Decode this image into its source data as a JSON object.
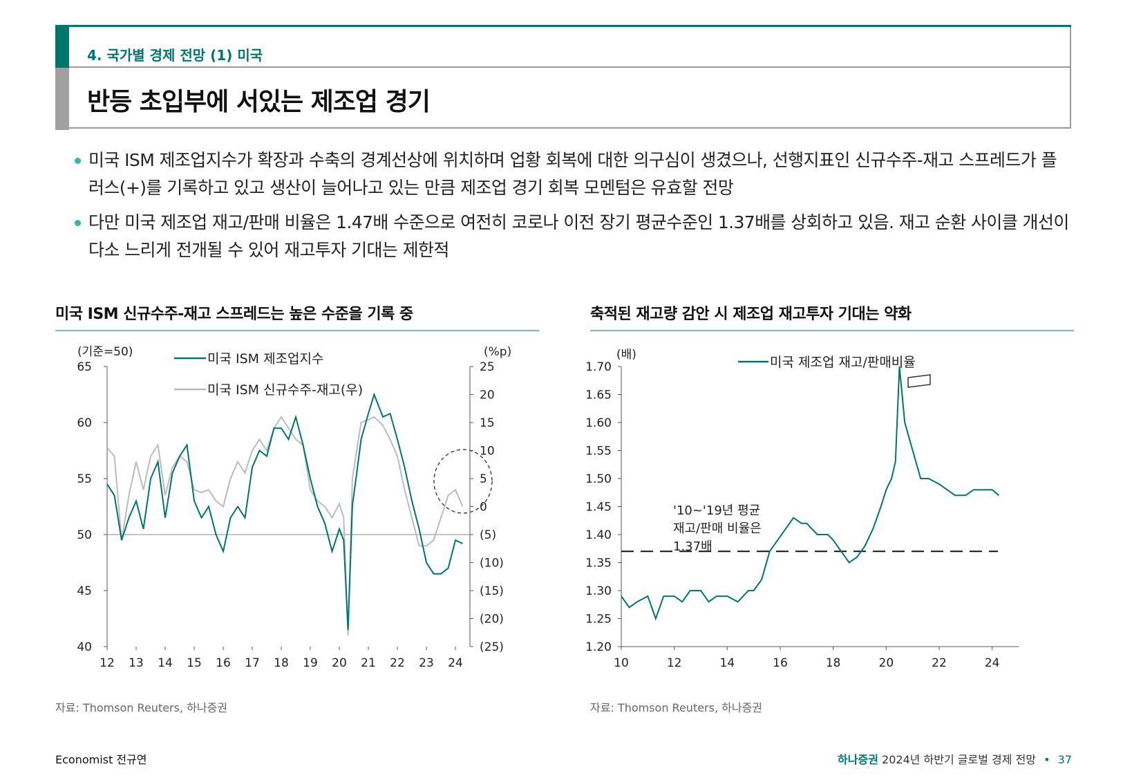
{
  "header": {
    "section_label": "4. 국가별 경제 전망 (1) 미국",
    "title": "반등 초입부에 서있는 제조업 경기"
  },
  "bullets": [
    "미국 ISM 제조업지수가 확장과 수축의 경계선상에 위치하며 업황 회복에 대한 의구심이 생겼으나, 선행지표인 신규수주-재고 스프레드가 플러스(+)를 기록하고 있고 생산이 늘어나고 있는 만큼 제조업 경기 회복 모멘텀은 유효할 전망",
    "다만 미국 제조업 재고/판매 비율은 1.47배 수준으로 여전히 코로나 이전 장기 평균수준인 1.37배를 상회하고 있음. 재고 순환 사이클 개선이 다소 느리게 전개될 수 있어 재고투자 기대는 제한적"
  ],
  "colors": {
    "teal": "#00756c",
    "grey": "#bbbbbb",
    "accent": "#3ab5a5"
  },
  "chart_data": [
    {
      "type": "line",
      "title": "미국 ISM 신규수주-재고 스프레드는 높은 수준을 기록 중",
      "left_unit": "(기준=50)",
      "right_unit": "(%p)",
      "x_ticks": [
        "12",
        "13",
        "14",
        "15",
        "16",
        "17",
        "18",
        "19",
        "20",
        "21",
        "22",
        "23",
        "24"
      ],
      "y_left": {
        "min": 40,
        "max": 65,
        "ticks": [
          "65",
          "60",
          "55",
          "50",
          "45",
          "40"
        ]
      },
      "y_right": {
        "min": -25,
        "max": 25,
        "ticks": [
          "25",
          "20",
          "15",
          "10",
          "5",
          "0",
          "(5)",
          "(10)",
          "(15)",
          "(20)",
          "(25)"
        ]
      },
      "series": [
        {
          "name": "미국 ISM 제조업지수",
          "axis": "left",
          "color": "#00756c",
          "x": [
            2012.0,
            2012.25,
            2012.5,
            2012.75,
            2013.0,
            2013.25,
            2013.5,
            2013.75,
            2014.0,
            2014.25,
            2014.5,
            2014.75,
            2015.0,
            2015.25,
            2015.5,
            2015.75,
            2016.0,
            2016.25,
            2016.5,
            2016.75,
            2017.0,
            2017.25,
            2017.5,
            2017.75,
            2018.0,
            2018.25,
            2018.5,
            2018.75,
            2019.0,
            2019.25,
            2019.5,
            2019.75,
            2020.0,
            2020.15,
            2020.3,
            2020.45,
            2020.6,
            2020.75,
            2021.0,
            2021.2,
            2021.5,
            2021.75,
            2022.0,
            2022.25,
            2022.5,
            2022.75,
            2023.0,
            2023.25,
            2023.5,
            2023.75,
            2024.0,
            2024.25
          ],
          "values": [
            54.5,
            53.5,
            49.5,
            51.5,
            53.0,
            50.5,
            55.0,
            56.5,
            51.5,
            55.5,
            57.0,
            58.0,
            53.0,
            51.5,
            52.5,
            50.0,
            48.5,
            51.5,
            52.5,
            51.5,
            56.0,
            57.5,
            57.0,
            59.5,
            59.5,
            58.5,
            60.5,
            58.0,
            55.0,
            52.5,
            51.0,
            48.5,
            50.5,
            49.5,
            41.5,
            52.6,
            55.5,
            58.5,
            60.8,
            62.5,
            60.5,
            60.8,
            58.5,
            56.0,
            53.0,
            50.5,
            47.5,
            46.5,
            46.5,
            47.0,
            49.5,
            49.2
          ]
        },
        {
          "name": "미국 ISM 신규수주-재고(우)",
          "axis": "right",
          "color": "#bbbbbb",
          "x": [
            2012.0,
            2012.25,
            2012.5,
            2012.75,
            2013.0,
            2013.25,
            2013.5,
            2013.75,
            2014.0,
            2014.25,
            2014.5,
            2014.75,
            2015.0,
            2015.25,
            2015.5,
            2015.75,
            2016.0,
            2016.25,
            2016.5,
            2016.75,
            2017.0,
            2017.25,
            2017.5,
            2017.75,
            2018.0,
            2018.25,
            2018.5,
            2018.75,
            2019.0,
            2019.25,
            2019.5,
            2019.75,
            2020.0,
            2020.15,
            2020.3,
            2020.45,
            2020.6,
            2020.75,
            2021.0,
            2021.2,
            2021.5,
            2021.75,
            2022.0,
            2022.25,
            2022.5,
            2022.75,
            2023.0,
            2023.25,
            2023.5,
            2023.75,
            2024.0,
            2024.25
          ],
          "values": [
            10.5,
            9.0,
            -6.0,
            2.0,
            8.0,
            3.0,
            9.0,
            11.0,
            2.0,
            7.0,
            9.0,
            8.0,
            3.0,
            2.5,
            3.0,
            1.0,
            0.0,
            5.0,
            8.0,
            6.0,
            10.0,
            12.0,
            10.0,
            14.0,
            16.0,
            14.0,
            12.0,
            11.0,
            3.0,
            1.0,
            0.0,
            -2.0,
            0.5,
            -2.0,
            -23.0,
            5.0,
            10.0,
            15.0,
            15.5,
            16.0,
            14.5,
            12.0,
            9.0,
            3.0,
            -2.0,
            -7.0,
            -7.0,
            -6.0,
            -2.0,
            2.0,
            3.0,
            0.0
          ]
        }
      ]
    },
    {
      "type": "line",
      "title": "축적된 재고량 감안 시 제조업 재고투자 기대는 약화",
      "left_unit": "(배)",
      "x_ticks": [
        "10",
        "12",
        "14",
        "16",
        "18",
        "20",
        "22",
        "24"
      ],
      "y_left": {
        "min": 1.2,
        "max": 1.7,
        "ticks": [
          "1.70",
          "1.65",
          "1.60",
          "1.55",
          "1.50",
          "1.45",
          "1.40",
          "1.35",
          "1.30",
          "1.25",
          "1.20"
        ]
      },
      "reference_line": {
        "value": 1.37
      },
      "annotation": [
        "'10~'19년 평균",
        "재고/판매 비율은",
        "1.37배"
      ],
      "series": [
        {
          "name": "미국 제조업 재고/판매비율",
          "color": "#00756c",
          "x": [
            2010.0,
            2010.3,
            2010.6,
            2011.0,
            2011.3,
            2011.6,
            2012.0,
            2012.3,
            2012.6,
            2013.0,
            2013.3,
            2013.6,
            2014.0,
            2014.4,
            2014.8,
            2015.0,
            2015.3,
            2015.6,
            2015.9,
            2016.2,
            2016.5,
            2016.8,
            2017.0,
            2017.4,
            2017.8,
            2018.0,
            2018.3,
            2018.6,
            2018.9,
            2019.2,
            2019.5,
            2019.8,
            2020.0,
            2020.2,
            2020.35,
            2020.5,
            2020.7,
            2021.0,
            2021.3,
            2021.6,
            2022.0,
            2022.3,
            2022.6,
            2023.0,
            2023.3,
            2023.6,
            2024.0,
            2024.25
          ],
          "values": [
            1.29,
            1.27,
            1.28,
            1.29,
            1.25,
            1.29,
            1.29,
            1.28,
            1.3,
            1.3,
            1.28,
            1.29,
            1.29,
            1.28,
            1.3,
            1.3,
            1.32,
            1.37,
            1.39,
            1.41,
            1.43,
            1.42,
            1.42,
            1.4,
            1.4,
            1.39,
            1.37,
            1.35,
            1.36,
            1.38,
            1.41,
            1.45,
            1.48,
            1.5,
            1.53,
            1.7,
            1.6,
            1.55,
            1.5,
            1.5,
            1.49,
            1.48,
            1.47,
            1.47,
            1.48,
            1.48,
            1.48,
            1.47
          ]
        }
      ]
    }
  ],
  "charts_text": {
    "left": {
      "title": "미국 ISM 신규수주-재고 스프레드는 높은 수준을 기록 중",
      "legend_1": "미국 ISM 제조업지수",
      "legend_2": "미국 ISM 신규수주-재고(우)",
      "source": "자료: Thomson Reuters, 하나증권"
    },
    "right": {
      "title": "축적된 재고량 감안 시 제조업 재고투자 기대는 약화",
      "legend_1": "미국 제조업 재고/판매비율",
      "source": "자료: Thomson Reuters, 하나증권"
    }
  },
  "footer": {
    "author": "Economist 전규연",
    "brand": "하나증권",
    "publication": "2024년 하반기 글로벌 경제 전망",
    "page": "37"
  }
}
